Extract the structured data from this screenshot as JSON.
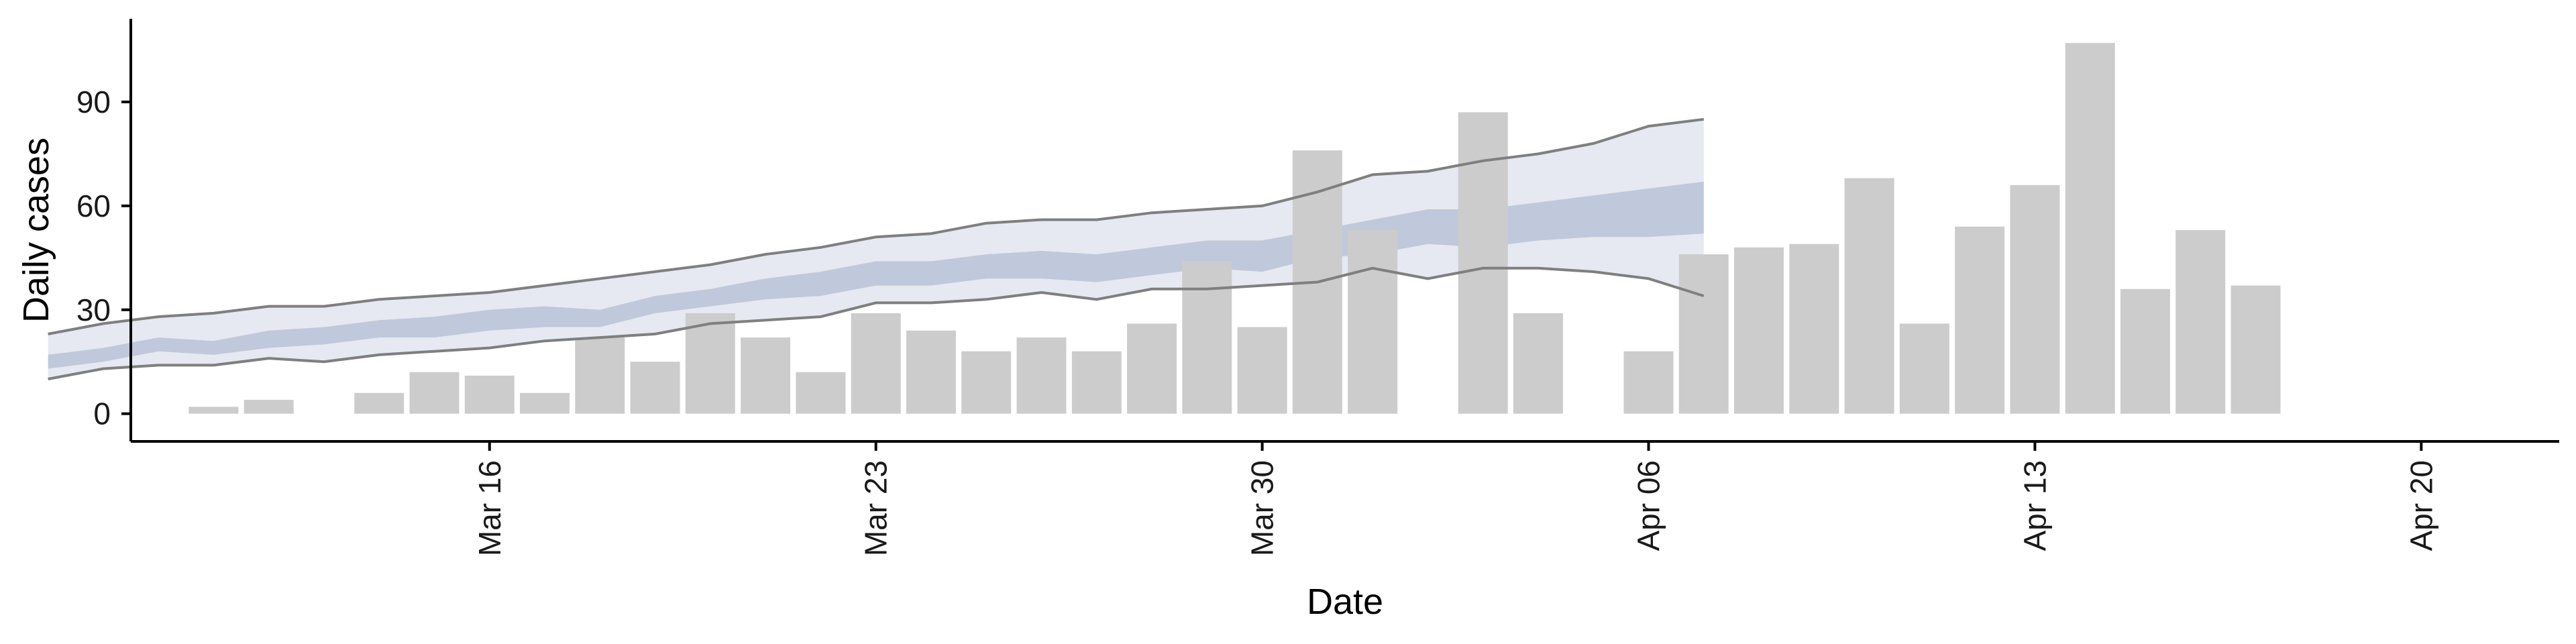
{
  "chart_data": {
    "type": "bar",
    "xlabel": "Date",
    "ylabel": "Daily cases",
    "ylim": [
      -8,
      114
    ],
    "y_ticks": [
      0,
      30,
      60,
      90
    ],
    "y_tick_labels": [
      "0",
      "30",
      "60",
      "90"
    ],
    "x_ticks": [
      "2020-03-16",
      "2020-03-23",
      "2020-03-30",
      "2020-04-06",
      "2020-04-13",
      "2020-04-20"
    ],
    "x_tick_labels": [
      "Mar 16",
      "Mar 23",
      "Mar 30",
      "Apr 06",
      "Apr 13",
      "Apr 20"
    ],
    "x_range": [
      "2020-03-09T12:00",
      "2020-04-22T12:00"
    ],
    "grid": false,
    "colors": {
      "bars": "#cccccc",
      "interval_outer": "#c7cedf",
      "interval_inner": "#b3bcd3",
      "interval_lines": "#7f7f7f",
      "axis": "#000000"
    },
    "series": [
      {
        "type": "bar",
        "dates": [
          "2020-03-11",
          "2020-03-12",
          "2020-03-14",
          "2020-03-15",
          "2020-03-16",
          "2020-03-17",
          "2020-03-18",
          "2020-03-19",
          "2020-03-20",
          "2020-03-21",
          "2020-03-22",
          "2020-03-23",
          "2020-03-24",
          "2020-03-25",
          "2020-03-26",
          "2020-03-27",
          "2020-03-28",
          "2020-03-29",
          "2020-03-30",
          "2020-03-31",
          "2020-04-01",
          "2020-04-03",
          "2020-04-04",
          "2020-04-06",
          "2020-04-07",
          "2020-04-08",
          "2020-04-09",
          "2020-04-10",
          "2020-04-11",
          "2020-04-12",
          "2020-04-13",
          "2020-04-14",
          "2020-04-15",
          "2020-04-16",
          "2020-04-17",
          "2020-04-18",
          "2020-04-19"
        ],
        "values": [
          2,
          4,
          6,
          12,
          11,
          6,
          22,
          15,
          29,
          22,
          12,
          29,
          24,
          18,
          22,
          18,
          26,
          44,
          25,
          76,
          53,
          87,
          29,
          18,
          46,
          48,
          49,
          68,
          26,
          54,
          66,
          107,
          36,
          53,
          37,
          0,
          0
        ]
      },
      {
        "type": "band",
        "dates": [
          "2020-03-08",
          "2020-03-09",
          "2020-03-10",
          "2020-03-11",
          "2020-03-12",
          "2020-03-13",
          "2020-03-14",
          "2020-03-15",
          "2020-03-16",
          "2020-03-17",
          "2020-03-18",
          "2020-03-19",
          "2020-03-20",
          "2020-03-21",
          "2020-03-22",
          "2020-03-23",
          "2020-03-24",
          "2020-03-25",
          "2020-03-26",
          "2020-03-27",
          "2020-03-28",
          "2020-03-29",
          "2020-03-30",
          "2020-03-31",
          "2020-04-01",
          "2020-04-02",
          "2020-04-03",
          "2020-04-04",
          "2020-04-05",
          "2020-04-06",
          "2020-04-07"
        ],
        "outer_lower": [
          10,
          13,
          14,
          14,
          16,
          15,
          17,
          18,
          19,
          21,
          22,
          23,
          26,
          27,
          28,
          32,
          32,
          33,
          35,
          33,
          36,
          36,
          37,
          38,
          42,
          39,
          42,
          42,
          41,
          39,
          34
        ],
        "outer_upper": [
          23,
          26,
          28,
          29,
          31,
          31,
          33,
          34,
          35,
          37,
          39,
          41,
          43,
          46,
          48,
          51,
          52,
          55,
          56,
          56,
          58,
          59,
          60,
          64,
          69,
          70,
          73,
          75,
          78,
          83,
          85
        ],
        "inner_lower": [
          13,
          15,
          18,
          17,
          19,
          20,
          22,
          22,
          24,
          25,
          25,
          29,
          31,
          33,
          34,
          37,
          37,
          39,
          39,
          38,
          40,
          42,
          41,
          45,
          46,
          49,
          48,
          50,
          51,
          51,
          52
        ],
        "inner_upper": [
          17,
          19,
          22,
          21,
          24,
          25,
          27,
          28,
          30,
          31,
          30,
          34,
          36,
          39,
          41,
          44,
          44,
          46,
          47,
          46,
          48,
          50,
          50,
          53,
          56,
          59,
          59,
          61,
          63,
          65,
          67
        ]
      }
    ]
  }
}
